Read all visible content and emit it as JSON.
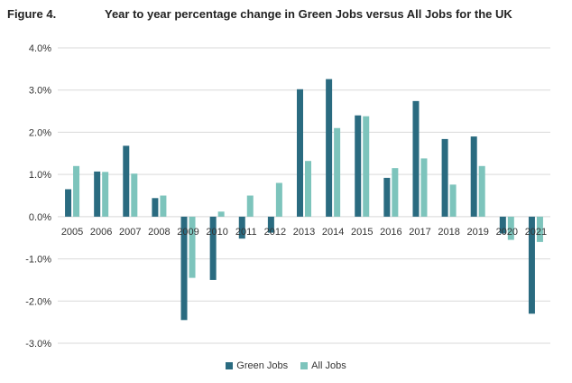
{
  "figure": {
    "number": "Figure 4.",
    "title": "Year to year percentage change in Green Jobs versus All Jobs for the UK"
  },
  "chart_data": {
    "type": "bar",
    "title": "Year to year percentage change in Green Jobs versus All Jobs for the UK",
    "xlabel": "",
    "ylabel": "",
    "ylim": [
      -3,
      4
    ],
    "yticks": [
      "-3.0%",
      "-2.0%",
      "-1.0%",
      "0.0%",
      "1.0%",
      "2.0%",
      "3.0%",
      "4.0%"
    ],
    "grid": true,
    "legend_placement": "bottom",
    "categories": [
      "2005",
      "2006",
      "2007",
      "2008",
      "2009",
      "2010",
      "2011",
      "2012",
      "2013",
      "2014",
      "2015",
      "2016",
      "2017",
      "2018",
      "2019",
      "2020",
      "2021"
    ],
    "series": [
      {
        "name": "Green Jobs",
        "color": "#2a6b80",
        "values": [
          0.65,
          1.07,
          1.68,
          0.44,
          -2.45,
          -1.5,
          -0.52,
          -0.38,
          3.02,
          3.26,
          2.4,
          0.92,
          2.74,
          1.84,
          1.9,
          -0.4,
          -2.3
        ]
      },
      {
        "name": "All Jobs",
        "color": "#7dc4bc",
        "values": [
          1.2,
          1.06,
          1.02,
          0.5,
          -1.45,
          0.12,
          0.5,
          0.8,
          1.32,
          2.1,
          2.38,
          1.15,
          1.38,
          0.76,
          1.2,
          -0.55,
          -0.6
        ]
      }
    ]
  }
}
